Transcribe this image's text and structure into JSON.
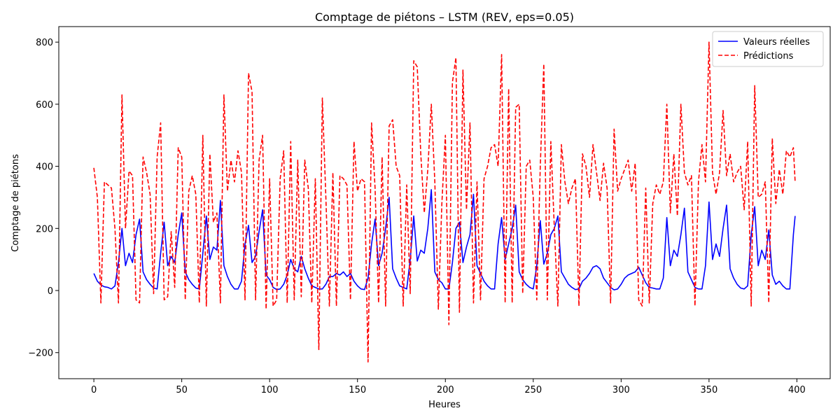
{
  "chart_data": {
    "type": "line",
    "title": "Comptage de piétons – LSTM (REV, eps=0.05)",
    "x_label": "Heures",
    "y_label": "Comptage de piétons",
    "x": [
      0,
      2,
      4,
      6,
      8,
      10,
      12,
      14,
      16,
      18,
      20,
      22,
      24,
      26,
      28,
      30,
      32,
      34,
      36,
      38,
      40,
      42,
      44,
      46,
      48,
      50,
      52,
      54,
      56,
      58,
      60,
      62,
      64,
      66,
      68,
      70,
      72,
      74,
      76,
      78,
      80,
      82,
      84,
      86,
      88,
      90,
      92,
      94,
      96,
      98,
      100,
      102,
      104,
      106,
      108,
      110,
      112,
      114,
      116,
      118,
      120,
      122,
      124,
      126,
      128,
      130,
      132,
      134,
      136,
      138,
      140,
      142,
      144,
      146,
      148,
      150,
      152,
      154,
      156,
      158,
      160,
      162,
      164,
      166,
      168,
      170,
      172,
      174,
      176,
      178,
      180,
      182,
      184,
      186,
      188,
      190,
      192,
      194,
      196,
      198,
      200,
      202,
      204,
      206,
      208,
      210,
      212,
      214,
      216,
      218,
      220,
      222,
      224,
      226,
      228,
      230,
      232,
      234,
      236,
      238,
      240,
      242,
      244,
      246,
      248,
      250,
      252,
      254,
      256,
      258,
      260,
      262,
      264,
      266,
      268,
      270,
      272,
      274,
      276,
      278,
      280,
      282,
      284,
      286,
      288,
      290,
      292,
      294,
      296,
      298,
      300,
      302,
      304,
      306,
      308,
      310,
      312,
      314,
      316,
      318,
      320,
      322,
      324,
      326,
      328,
      330,
      332,
      334,
      336,
      338,
      340,
      342,
      344,
      346,
      348,
      350,
      352,
      354,
      356,
      358,
      360,
      362,
      364,
      366,
      368,
      370,
      372,
      374,
      376,
      378,
      380,
      382,
      384,
      386,
      388,
      390,
      392,
      394,
      396,
      398,
      399
    ],
    "series": [
      {
        "name": "Valeurs réelles",
        "color": "#0000ff",
        "dashed": false,
        "values": [
          55,
          30,
          18,
          12,
          10,
          5,
          15,
          90,
          200,
          80,
          120,
          90,
          180,
          230,
          60,
          35,
          20,
          8,
          5,
          120,
          220,
          80,
          110,
          90,
          180,
          250,
          60,
          35,
          20,
          8,
          5,
          120,
          240,
          100,
          140,
          130,
          290,
          80,
          45,
          20,
          5,
          5,
          30,
          150,
          210,
          90,
          110,
          190,
          260,
          50,
          35,
          10,
          3,
          5,
          20,
          50,
          100,
          70,
          60,
          110,
          70,
          40,
          15,
          10,
          5,
          5,
          20,
          45,
          45,
          55,
          50,
          60,
          45,
          55,
          30,
          15,
          5,
          3,
          40,
          150,
          230,
          80,
          120,
          200,
          300,
          70,
          40,
          15,
          10,
          5,
          100,
          240,
          95,
          130,
          120,
          200,
          325,
          60,
          35,
          25,
          5,
          5,
          90,
          200,
          220,
          90,
          140,
          180,
          310,
          80,
          55,
          30,
          15,
          5,
          5,
          150,
          235,
          100,
          150,
          200,
          275,
          60,
          35,
          20,
          10,
          5,
          80,
          225,
          85,
          120,
          180,
          200,
          240,
          60,
          40,
          20,
          10,
          3,
          5,
          30,
          40,
          55,
          75,
          80,
          70,
          40,
          25,
          10,
          2,
          5,
          20,
          40,
          50,
          55,
          60,
          75,
          50,
          25,
          10,
          8,
          5,
          5,
          40,
          235,
          80,
          130,
          110,
          180,
          265,
          60,
          35,
          10,
          5,
          5,
          80,
          285,
          100,
          150,
          110,
          200,
          275,
          70,
          40,
          20,
          8,
          5,
          15,
          180,
          270,
          80,
          130,
          100,
          195,
          50,
          20,
          30,
          15,
          5,
          5,
          180,
          240
        ]
      },
      {
        "name": "Prédictions",
        "color": "#ff0000",
        "dashed": true,
        "values": [
          395,
          300,
          -40,
          350,
          340,
          330,
          200,
          -40,
          630,
          200,
          385,
          370,
          -30,
          -40,
          430,
          380,
          310,
          -10,
          430,
          540,
          -30,
          -20,
          190,
          10,
          460,
          430,
          -30,
          320,
          370,
          310,
          -40,
          500,
          -50,
          440,
          220,
          250,
          -40,
          630,
          320,
          420,
          350,
          450,
          380,
          -30,
          700,
          640,
          -30,
          420,
          500,
          -60,
          360,
          -50,
          -30,
          360,
          450,
          -40,
          480,
          -30,
          420,
          -20,
          420,
          330,
          -40,
          360,
          -190,
          620,
          300,
          -50,
          380,
          -50,
          370,
          360,
          340,
          -30,
          480,
          320,
          360,
          350,
          -230,
          540,
          330,
          -40,
          430,
          -50,
          530,
          550,
          400,
          370,
          -50,
          340,
          -10,
          740,
          720,
          440,
          250,
          390,
          600,
          350,
          -60,
          280,
          500,
          -110,
          670,
          750,
          -70,
          710,
          260,
          540,
          -40,
          350,
          -30,
          360,
          400,
          460,
          470,
          400,
          760,
          -40,
          650,
          -40,
          590,
          600,
          -10,
          400,
          420,
          300,
          -30,
          400,
          730,
          -30,
          480,
          200,
          -50,
          470,
          350,
          280,
          330,
          360,
          -50,
          440,
          400,
          300,
          470,
          380,
          290,
          410,
          330,
          -40,
          520,
          320,
          360,
          390,
          420,
          320,
          410,
          -30,
          -50,
          330,
          -40,
          280,
          340,
          310,
          350,
          600,
          250,
          440,
          240,
          600,
          380,
          340,
          370,
          -50,
          350,
          470,
          350,
          800,
          380,
          310,
          380,
          580,
          370,
          440,
          350,
          380,
          400,
          260,
          480,
          -50,
          660,
          300,
          310,
          350,
          -40,
          490,
          280,
          390,
          310,
          450,
          430,
          460,
          350
        ]
      }
    ],
    "xlim": [
      -19.95,
      418.95
    ],
    "ylim": [
      -284,
      850
    ],
    "xticks": [
      0,
      50,
      100,
      150,
      200,
      250,
      300,
      350,
      400
    ],
    "yticks": [
      {
        "value": -200,
        "label": "−200"
      },
      0,
      200,
      400,
      600,
      800
    ],
    "legend": "upper right"
  }
}
